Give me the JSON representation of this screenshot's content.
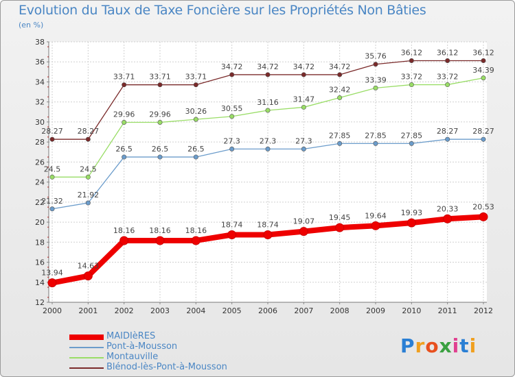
{
  "chart_data": {
    "type": "line",
    "title": "Evolution du Taux de Taxe Foncière sur les Propriétés Non Bâties",
    "unit_label": "(en %)",
    "xlabel": "",
    "ylabel": "(en %)",
    "ylim": [
      12,
      38
    ],
    "yticks": [
      12,
      14,
      16,
      18,
      20,
      22,
      24,
      26,
      28,
      30,
      32,
      34,
      36,
      38
    ],
    "grid": true,
    "x": [
      "2000",
      "2001",
      "2002",
      "2003",
      "2004",
      "2005",
      "2006",
      "2007",
      "2008",
      "2009",
      "2010",
      "2011",
      "2012"
    ],
    "series": [
      {
        "name": "MAIDIèRES",
        "color": "#ee0000",
        "values": [
          13.94,
          14.63,
          18.16,
          18.16,
          18.16,
          18.74,
          18.74,
          19.07,
          19.45,
          19.64,
          19.93,
          20.33,
          20.53
        ],
        "labels": [
          "13.94",
          "14.63",
          "18.16",
          "18.16",
          "18.16",
          "18.74",
          "18.74",
          "19.07",
          "19.45",
          "19.64",
          "19.93",
          "20.33",
          "20.53"
        ]
      },
      {
        "name": "Pont-à-Mousson",
        "color": "#6b9ccb",
        "values": [
          21.32,
          21.92,
          26.5,
          26.5,
          26.5,
          27.3,
          27.3,
          27.3,
          27.85,
          27.85,
          27.85,
          28.27,
          28.27
        ],
        "labels": [
          "21.32",
          "21.92",
          "26.5",
          "26.5",
          "26.5",
          "27.3",
          "27.3",
          "27.3",
          "27.85",
          "27.85",
          "27.85",
          "28.27",
          "28.27"
        ]
      },
      {
        "name": "Montauville",
        "color": "#99dd66",
        "values": [
          24.5,
          24.5,
          29.96,
          29.96,
          30.26,
          30.55,
          31.16,
          31.47,
          32.42,
          33.39,
          33.72,
          33.72,
          34.39
        ],
        "labels": [
          "24.5",
          "24.5",
          "29.96",
          "29.96",
          "30.26",
          "30.55",
          "31.16",
          "31.47",
          "32.42",
          "33.39",
          "33.72",
          "33.72",
          "34.39"
        ]
      },
      {
        "name": "Blénod-lès-Pont-à-Mousson",
        "color": "#7a2a2a",
        "values": [
          28.27,
          28.27,
          33.71,
          33.71,
          33.71,
          34.72,
          34.72,
          34.72,
          34.72,
          35.76,
          36.12,
          36.12,
          36.12
        ],
        "labels": [
          "28.27",
          "28.27",
          "33.71",
          "33.71",
          "33.71",
          "34.72",
          "34.72",
          "34.72",
          "34.72",
          "35.76",
          "36.12",
          "36.12",
          "36.12"
        ]
      }
    ],
    "legend_position": "bottom-left"
  },
  "brand": {
    "letters": [
      "P",
      "r",
      "o",
      "x",
      "i",
      "t",
      "i"
    ],
    "colors": [
      "#2a7fd4",
      "#f0a020",
      "#e8501e",
      "#3aa040",
      "#e04090",
      "#2a7fd4",
      "#f0a020"
    ]
  }
}
